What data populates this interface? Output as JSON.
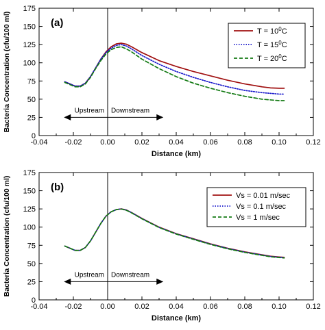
{
  "chart_data": [
    {
      "type": "line",
      "panel_label": "(a)",
      "xlabel": "Distance (km)",
      "ylabel": "Bacteria Concentration (cfu/100 ml)",
      "xlim": [
        -0.04,
        0.12
      ],
      "ylim": [
        0,
        175
      ],
      "xticks": [
        "-0.04",
        "-0.02",
        "0.00",
        "0.02",
        "0.04",
        "0.06",
        "0.08",
        "0.10",
        "0.12"
      ],
      "yticks": [
        "0",
        "25",
        "50",
        "75",
        "100",
        "125",
        "150",
        "175"
      ],
      "legend_position": "top-right",
      "annotations": {
        "upstream": "Upstream",
        "downstream": "Downstream"
      },
      "x": [
        -0.025,
        -0.022,
        -0.019,
        -0.016,
        -0.013,
        -0.01,
        -0.007,
        -0.004,
        -0.001,
        0.002,
        0.005,
        0.008,
        0.011,
        0.014,
        0.02,
        0.03,
        0.04,
        0.05,
        0.06,
        0.07,
        0.08,
        0.09,
        0.095,
        0.1,
        0.103
      ],
      "series": [
        {
          "name": "T = 10",
          "label_prefix": "T = 10",
          "label_sup": "0",
          "label_suffix": "C",
          "color": "#a01010",
          "dash": "solid",
          "values": [
            74,
            71,
            68,
            68,
            72,
            81,
            93,
            105,
            115,
            122,
            126,
            127,
            125.5,
            122,
            114,
            103,
            95,
            88,
            82,
            76,
            71,
            67,
            65.5,
            65,
            65
          ]
        },
        {
          "name": "T = 15",
          "label_prefix": "T = 15",
          "label_sup": "0",
          "label_suffix": "C",
          "color": "#1a1acc",
          "dash": "dotted",
          "values": [
            74,
            71,
            68,
            68,
            72,
            81,
            93,
            105,
            114,
            120,
            124,
            125,
            123,
            119,
            110,
            98,
            88,
            80,
            73,
            67,
            62,
            59,
            58,
            57,
            57
          ]
        },
        {
          "name": "T = 20",
          "label_prefix": "T = 20",
          "label_sup": "0",
          "label_suffix": "C",
          "color": "#137a13",
          "dash": "dashed",
          "values": [
            73,
            70,
            67,
            67,
            71,
            80,
            92,
            103,
            112,
            118,
            121,
            122,
            119,
            115,
            105,
            92,
            81,
            72,
            65,
            59,
            54,
            50,
            49,
            48,
            48
          ]
        }
      ]
    },
    {
      "type": "line",
      "panel_label": "(b)",
      "xlabel": "Distance (km)",
      "ylabel": "Bacteria Concentration (cfu/100 ml)",
      "xlim": [
        -0.04,
        0.12
      ],
      "ylim": [
        0,
        175
      ],
      "xticks": [
        "-0.04",
        "-0.02",
        "0.00",
        "0.02",
        "0.04",
        "0.06",
        "0.08",
        "0.10",
        "0.12"
      ],
      "yticks": [
        "0",
        "25",
        "50",
        "75",
        "100",
        "125",
        "150",
        "175"
      ],
      "legend_position": "top-right",
      "annotations": {
        "upstream": "Upstream",
        "downstream": "Downstream"
      },
      "x": [
        -0.025,
        -0.022,
        -0.019,
        -0.016,
        -0.013,
        -0.01,
        -0.007,
        -0.004,
        -0.001,
        0.002,
        0.005,
        0.008,
        0.011,
        0.014,
        0.02,
        0.03,
        0.04,
        0.05,
        0.06,
        0.07,
        0.08,
        0.09,
        0.095,
        0.1,
        0.103
      ],
      "series": [
        {
          "name": "Vs = 0.01 m/sec",
          "label_prefix": "Vs = 0.01 m/sec",
          "label_sup": "",
          "label_suffix": "",
          "color": "#a01010",
          "dash": "solid",
          "values": [
            74,
            71,
            68,
            68,
            72,
            81,
            93,
            105,
            115,
            121,
            124,
            125,
            123.5,
            120,
            112,
            100,
            91,
            84,
            77,
            71,
            66,
            62,
            60,
            59,
            58.5
          ]
        },
        {
          "name": "Vs = 0.1 m/sec",
          "label_prefix": "Vs = 0.1 m/sec",
          "label_sup": "",
          "label_suffix": "",
          "color": "#1a1acc",
          "dash": "dotted",
          "values": [
            74,
            71,
            68,
            68,
            72,
            81,
            93,
            105,
            115,
            121,
            124,
            125,
            123.3,
            119.8,
            111.7,
            99.7,
            90.7,
            83.6,
            76.6,
            70.6,
            65.6,
            61.6,
            59.6,
            58.6,
            58
          ]
        },
        {
          "name": "Vs = 1 m/sec",
          "label_prefix": "Vs = 1 m/sec",
          "label_sup": "",
          "label_suffix": "",
          "color": "#137a13",
          "dash": "dashed",
          "values": [
            74,
            71,
            68,
            68,
            72,
            81,
            93,
            105,
            115,
            121,
            124,
            124.8,
            123,
            119.5,
            111.4,
            99.4,
            90.4,
            83.2,
            76.2,
            70.2,
            65.2,
            61.2,
            59.2,
            58.2,
            57.6
          ]
        }
      ]
    }
  ]
}
